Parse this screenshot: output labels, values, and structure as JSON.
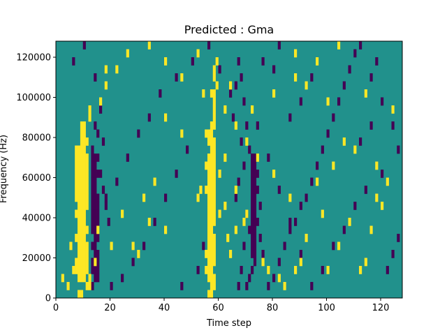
{
  "chart_data": {
    "type": "heatmap",
    "title": "Predicted : Gma",
    "xlabel": "Time step",
    "ylabel": "Frequency (Hz)",
    "xlim": [
      0,
      128
    ],
    "ylim": [
      0,
      128000
    ],
    "xticks": [
      0,
      20,
      40,
      60,
      80,
      100,
      120
    ],
    "yticks": [
      0,
      20000,
      40000,
      60000,
      80000,
      100000,
      120000
    ],
    "grid": false,
    "colors": {
      "background": "#21918c",
      "high": "#fde725",
      "low": "#440154"
    },
    "value_levels": {
      "low": -1,
      "background": 0,
      "high": 1
    },
    "rows": 32,
    "cols": 128,
    "high_cells": [
      [
        8,
        0
      ],
      [
        9,
        0
      ],
      [
        11,
        1
      ],
      [
        12,
        1
      ],
      [
        8,
        2
      ],
      [
        9,
        2
      ],
      [
        10,
        2
      ],
      [
        7,
        3
      ],
      [
        8,
        3
      ],
      [
        9,
        3
      ],
      [
        10,
        3
      ],
      [
        11,
        3
      ],
      [
        7,
        4
      ],
      [
        8,
        4
      ],
      [
        9,
        4
      ],
      [
        10,
        4
      ],
      [
        11,
        4
      ],
      [
        8,
        5
      ],
      [
        9,
        5
      ],
      [
        10,
        5
      ],
      [
        11,
        5
      ],
      [
        8,
        6
      ],
      [
        9,
        6
      ],
      [
        10,
        6
      ],
      [
        11,
        6
      ],
      [
        7,
        7
      ],
      [
        8,
        7
      ],
      [
        9,
        7
      ],
      [
        10,
        7
      ],
      [
        8,
        8
      ],
      [
        9,
        8
      ],
      [
        10,
        8
      ],
      [
        11,
        8
      ],
      [
        8,
        9
      ],
      [
        9,
        9
      ],
      [
        10,
        9
      ],
      [
        7,
        10
      ],
      [
        8,
        10
      ],
      [
        9,
        10
      ],
      [
        10,
        10
      ],
      [
        8,
        11
      ],
      [
        9,
        11
      ],
      [
        10,
        11
      ],
      [
        11,
        11
      ],
      [
        7,
        12
      ],
      [
        8,
        12
      ],
      [
        9,
        12
      ],
      [
        10,
        12
      ],
      [
        11,
        12
      ],
      [
        7,
        13
      ],
      [
        8,
        13
      ],
      [
        9,
        13
      ],
      [
        10,
        13
      ],
      [
        11,
        13
      ],
      [
        7,
        14
      ],
      [
        8,
        14
      ],
      [
        9,
        14
      ],
      [
        10,
        14
      ],
      [
        11,
        14
      ],
      [
        7,
        15
      ],
      [
        8,
        15
      ],
      [
        9,
        15
      ],
      [
        10,
        15
      ],
      [
        11,
        15
      ],
      [
        7,
        16
      ],
      [
        8,
        16
      ],
      [
        9,
        16
      ],
      [
        10,
        16
      ],
      [
        11,
        16
      ],
      [
        7,
        17
      ],
      [
        8,
        17
      ],
      [
        9,
        17
      ],
      [
        10,
        17
      ],
      [
        11,
        17
      ],
      [
        7,
        18
      ],
      [
        8,
        18
      ],
      [
        9,
        18
      ],
      [
        10,
        18
      ],
      [
        9,
        19
      ],
      [
        10,
        19
      ],
      [
        11,
        19
      ],
      [
        9,
        20
      ],
      [
        10,
        20
      ],
      [
        9,
        21
      ],
      [
        10,
        21
      ],
      [
        12,
        22
      ],
      [
        12,
        23
      ],
      [
        16,
        24
      ],
      [
        18,
        28
      ],
      [
        56,
        0
      ],
      [
        57,
        0
      ],
      [
        57,
        1
      ],
      [
        58,
        1
      ],
      [
        56,
        2
      ],
      [
        57,
        2
      ],
      [
        58,
        2
      ],
      [
        55,
        3
      ],
      [
        56,
        3
      ],
      [
        57,
        3
      ],
      [
        56,
        4
      ],
      [
        57,
        4
      ],
      [
        58,
        4
      ],
      [
        55,
        5
      ],
      [
        56,
        5
      ],
      [
        57,
        5
      ],
      [
        58,
        5
      ],
      [
        56,
        6
      ],
      [
        57,
        6
      ],
      [
        58,
        6
      ],
      [
        56,
        7
      ],
      [
        57,
        7
      ],
      [
        58,
        7
      ],
      [
        56,
        8
      ],
      [
        57,
        8
      ],
      [
        56,
        9
      ],
      [
        57,
        9
      ],
      [
        58,
        9
      ],
      [
        56,
        10
      ],
      [
        57,
        10
      ],
      [
        58,
        10
      ],
      [
        56,
        11
      ],
      [
        57,
        11
      ],
      [
        58,
        11
      ],
      [
        56,
        12
      ],
      [
        57,
        12
      ],
      [
        58,
        12
      ],
      [
        55,
        13
      ],
      [
        56,
        13
      ],
      [
        57,
        13
      ],
      [
        58,
        13
      ],
      [
        56,
        14
      ],
      [
        57,
        14
      ],
      [
        58,
        14
      ],
      [
        56,
        15
      ],
      [
        57,
        15
      ],
      [
        58,
        15
      ],
      [
        55,
        16
      ],
      [
        56,
        16
      ],
      [
        57,
        16
      ],
      [
        58,
        16
      ],
      [
        56,
        17
      ],
      [
        57,
        17
      ],
      [
        58,
        17
      ],
      [
        57,
        18
      ],
      [
        58,
        18
      ],
      [
        56,
        19
      ],
      [
        57,
        19
      ],
      [
        58,
        19
      ],
      [
        55,
        20
      ],
      [
        56,
        20
      ],
      [
        57,
        20
      ],
      [
        57,
        21
      ],
      [
        58,
        21
      ],
      [
        58,
        22
      ],
      [
        58,
        23
      ],
      [
        58,
        24
      ],
      [
        57,
        25
      ],
      [
        58,
        25
      ],
      [
        59,
        26
      ],
      [
        58,
        27
      ],
      [
        58,
        28
      ],
      [
        59,
        29
      ],
      [
        2,
        2
      ],
      [
        4,
        1
      ],
      [
        6,
        3
      ],
      [
        5,
        6
      ],
      [
        15,
        8
      ],
      [
        28,
        6
      ],
      [
        30,
        5
      ],
      [
        34,
        9
      ],
      [
        40,
        8
      ],
      [
        52,
        12
      ],
      [
        53,
        13
      ],
      [
        60,
        10
      ],
      [
        62,
        11
      ],
      [
        63,
        7
      ],
      [
        64,
        5
      ],
      [
        66,
        8
      ],
      [
        69,
        9
      ],
      [
        70,
        10
      ],
      [
        76,
        4
      ],
      [
        78,
        3
      ],
      [
        82,
        2
      ],
      [
        84,
        1
      ],
      [
        88,
        3
      ],
      [
        90,
        4
      ],
      [
        92,
        7
      ],
      [
        98,
        10
      ],
      [
        100,
        3
      ],
      [
        104,
        6
      ],
      [
        108,
        9
      ],
      [
        112,
        3
      ],
      [
        114,
        4
      ],
      [
        116,
        8
      ],
      [
        120,
        11
      ],
      [
        122,
        14
      ],
      [
        118,
        16
      ],
      [
        110,
        18
      ],
      [
        106,
        19
      ],
      [
        102,
        16
      ],
      [
        96,
        14
      ],
      [
        86,
        12
      ],
      [
        80,
        15
      ],
      [
        74,
        17
      ],
      [
        70,
        19
      ],
      [
        66,
        21
      ],
      [
        62,
        23
      ],
      [
        54,
        25
      ],
      [
        46,
        27
      ],
      [
        40,
        29
      ],
      [
        34,
        31
      ],
      [
        26,
        30
      ],
      [
        22,
        28
      ],
      [
        18,
        26
      ],
      [
        104,
        31
      ],
      [
        96,
        29
      ],
      [
        88,
        27
      ],
      [
        80,
        25
      ],
      [
        72,
        23
      ],
      [
        64,
        26
      ],
      [
        52,
        30
      ],
      [
        46,
        20
      ],
      [
        40,
        22
      ],
      [
        36,
        14
      ],
      [
        32,
        12
      ],
      [
        24,
        10
      ],
      [
        20,
        6
      ],
      [
        14,
        4
      ],
      [
        12,
        2
      ],
      [
        114,
        25
      ],
      [
        118,
        12
      ],
      [
        124,
        23
      ],
      [
        88,
        30
      ],
      [
        92,
        26
      ],
      [
        100,
        24
      ],
      [
        60,
        15
      ],
      [
        62,
        17
      ],
      [
        66,
        13
      ]
    ],
    "low_cells": [
      [
        13,
        1
      ],
      [
        14,
        2
      ],
      [
        15,
        2
      ],
      [
        13,
        3
      ],
      [
        14,
        3
      ],
      [
        15,
        3
      ],
      [
        13,
        4
      ],
      [
        14,
        4
      ],
      [
        15,
        4
      ],
      [
        14,
        5
      ],
      [
        15,
        5
      ],
      [
        13,
        6
      ],
      [
        14,
        6
      ],
      [
        14,
        7
      ],
      [
        15,
        7
      ],
      [
        13,
        8
      ],
      [
        14,
        8
      ],
      [
        13,
        9
      ],
      [
        14,
        9
      ],
      [
        15,
        9
      ],
      [
        13,
        10
      ],
      [
        14,
        10
      ],
      [
        15,
        10
      ],
      [
        13,
        11
      ],
      [
        14,
        11
      ],
      [
        15,
        11
      ],
      [
        13,
        12
      ],
      [
        14,
        12
      ],
      [
        15,
        12
      ],
      [
        13,
        13
      ],
      [
        14,
        13
      ],
      [
        13,
        14
      ],
      [
        14,
        14
      ],
      [
        13,
        15
      ],
      [
        14,
        15
      ],
      [
        15,
        15
      ],
      [
        13,
        16
      ],
      [
        14,
        16
      ],
      [
        13,
        17
      ],
      [
        14,
        17
      ],
      [
        15,
        17
      ],
      [
        16,
        15
      ],
      [
        17,
        13
      ],
      [
        18,
        11
      ],
      [
        19,
        9
      ],
      [
        17,
        19
      ],
      [
        16,
        23
      ],
      [
        14,
        21
      ],
      [
        13,
        18
      ],
      [
        15,
        20
      ],
      [
        70,
        1
      ],
      [
        71,
        2
      ],
      [
        72,
        3
      ],
      [
        73,
        4
      ],
      [
        72,
        5
      ],
      [
        73,
        5
      ],
      [
        72,
        6
      ],
      [
        73,
        6
      ],
      [
        72,
        7
      ],
      [
        73,
        7
      ],
      [
        72,
        8
      ],
      [
        73,
        8
      ],
      [
        72,
        9
      ],
      [
        73,
        9
      ],
      [
        72,
        10
      ],
      [
        73,
        10
      ],
      [
        72,
        11
      ],
      [
        73,
        11
      ],
      [
        72,
        12
      ],
      [
        73,
        12
      ],
      [
        72,
        13
      ],
      [
        73,
        13
      ],
      [
        72,
        14
      ],
      [
        73,
        14
      ],
      [
        72,
        15
      ],
      [
        73,
        15
      ],
      [
        72,
        16
      ],
      [
        73,
        16
      ],
      [
        72,
        17
      ],
      [
        73,
        17
      ],
      [
        74,
        13
      ],
      [
        74,
        9
      ],
      [
        75,
        11
      ],
      [
        76,
        5
      ],
      [
        75,
        7
      ],
      [
        74,
        15
      ],
      [
        71,
        18
      ],
      [
        70,
        21
      ],
      [
        69,
        24
      ],
      [
        68,
        27
      ],
      [
        67,
        29
      ],
      [
        66,
        26
      ],
      [
        65,
        22
      ],
      [
        68,
        19
      ],
      [
        69,
        16
      ],
      [
        67,
        14
      ],
      [
        66,
        12
      ],
      [
        70,
        10
      ],
      [
        71,
        8
      ],
      [
        69,
        6
      ],
      [
        68,
        3
      ],
      [
        67,
        1
      ],
      [
        78,
        1
      ],
      [
        80,
        2
      ],
      [
        82,
        4
      ],
      [
        84,
        6
      ],
      [
        86,
        8
      ],
      [
        88,
        9
      ],
      [
        90,
        11
      ],
      [
        92,
        12
      ],
      [
        94,
        14
      ],
      [
        96,
        16
      ],
      [
        98,
        18
      ],
      [
        100,
        20
      ],
      [
        102,
        22
      ],
      [
        104,
        24
      ],
      [
        106,
        26
      ],
      [
        108,
        28
      ],
      [
        110,
        30
      ],
      [
        112,
        31
      ],
      [
        116,
        27
      ],
      [
        120,
        24
      ],
      [
        124,
        21
      ],
      [
        126,
        18
      ],
      [
        120,
        15
      ],
      [
        114,
        13
      ],
      [
        110,
        11
      ],
      [
        106,
        8
      ],
      [
        102,
        6
      ],
      [
        98,
        3
      ],
      [
        94,
        1
      ],
      [
        90,
        5
      ],
      [
        86,
        9
      ],
      [
        82,
        13
      ],
      [
        78,
        17
      ],
      [
        74,
        21
      ],
      [
        64,
        25
      ],
      [
        60,
        28
      ],
      [
        56,
        31
      ],
      [
        50,
        29
      ],
      [
        44,
        27
      ],
      [
        38,
        25
      ],
      [
        34,
        22
      ],
      [
        30,
        20
      ],
      [
        26,
        17
      ],
      [
        22,
        14
      ],
      [
        18,
        12
      ],
      [
        14,
        27
      ],
      [
        10,
        31
      ],
      [
        6,
        29
      ],
      [
        48,
        18
      ],
      [
        44,
        15
      ],
      [
        40,
        12
      ],
      [
        36,
        9
      ],
      [
        32,
        6
      ],
      [
        28,
        4
      ],
      [
        24,
        2
      ],
      [
        20,
        1
      ],
      [
        46,
        1
      ],
      [
        52,
        3
      ],
      [
        54,
        6
      ],
      [
        122,
        3
      ],
      [
        124,
        5
      ],
      [
        126,
        7
      ],
      [
        112,
        19
      ],
      [
        116,
        21
      ],
      [
        118,
        29
      ],
      [
        86,
        22
      ],
      [
        90,
        24
      ],
      [
        94,
        27
      ],
      [
        80,
        28
      ],
      [
        76,
        29
      ],
      [
        82,
        31
      ]
    ]
  }
}
